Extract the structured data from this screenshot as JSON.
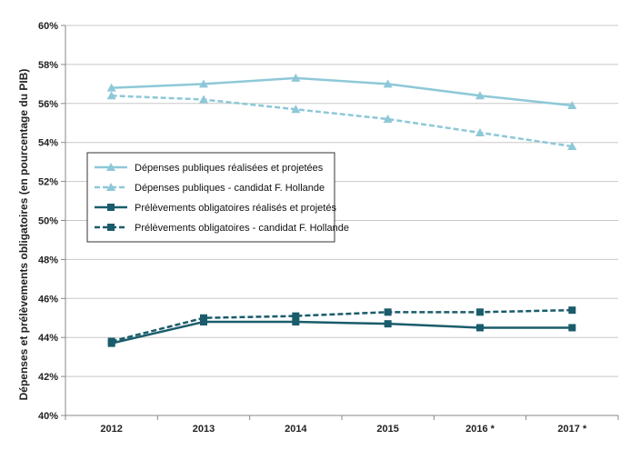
{
  "chart_data": {
    "type": "line",
    "title": "",
    "xlabel": "",
    "ylabel": "Dépenses et prélèvements obligatoires (en pourcentage du PIB)",
    "categories": [
      "2012",
      "2013",
      "2014",
      "2015",
      "2016 *",
      "2017 *"
    ],
    "y_ticks": [
      "40%",
      "42%",
      "44%",
      "46%",
      "48%",
      "50%",
      "52%",
      "54%",
      "56%",
      "58%",
      "60%"
    ],
    "ylim": [
      40,
      60
    ],
    "grid": "horizontal",
    "legend_position": "left-middle",
    "series": [
      {
        "name": "Dépenses publiques réalisées et projetées",
        "values": [
          56.8,
          57.0,
          57.3,
          57.0,
          56.4,
          55.9
        ],
        "color": "#8ec8d8",
        "dash": "solid",
        "marker": "triangle"
      },
      {
        "name": "Dépenses publiques - candidat F. Hollande",
        "values": [
          56.4,
          56.2,
          55.7,
          55.2,
          54.5,
          53.8
        ],
        "color": "#8ec8d8",
        "dash": "dashed",
        "marker": "triangle"
      },
      {
        "name": "Prélèvements obligatoires réalisés et projetés",
        "values": [
          43.7,
          44.8,
          44.8,
          44.7,
          44.5,
          44.5
        ],
        "color": "#1a5c6b",
        "dash": "solid",
        "marker": "square"
      },
      {
        "name": "Prélèvements obligatoires - candidat F. Hollande",
        "values": [
          43.8,
          45.0,
          45.1,
          45.3,
          45.3,
          45.4
        ],
        "color": "#1a5c6b",
        "dash": "dashed",
        "marker": "square"
      }
    ]
  }
}
